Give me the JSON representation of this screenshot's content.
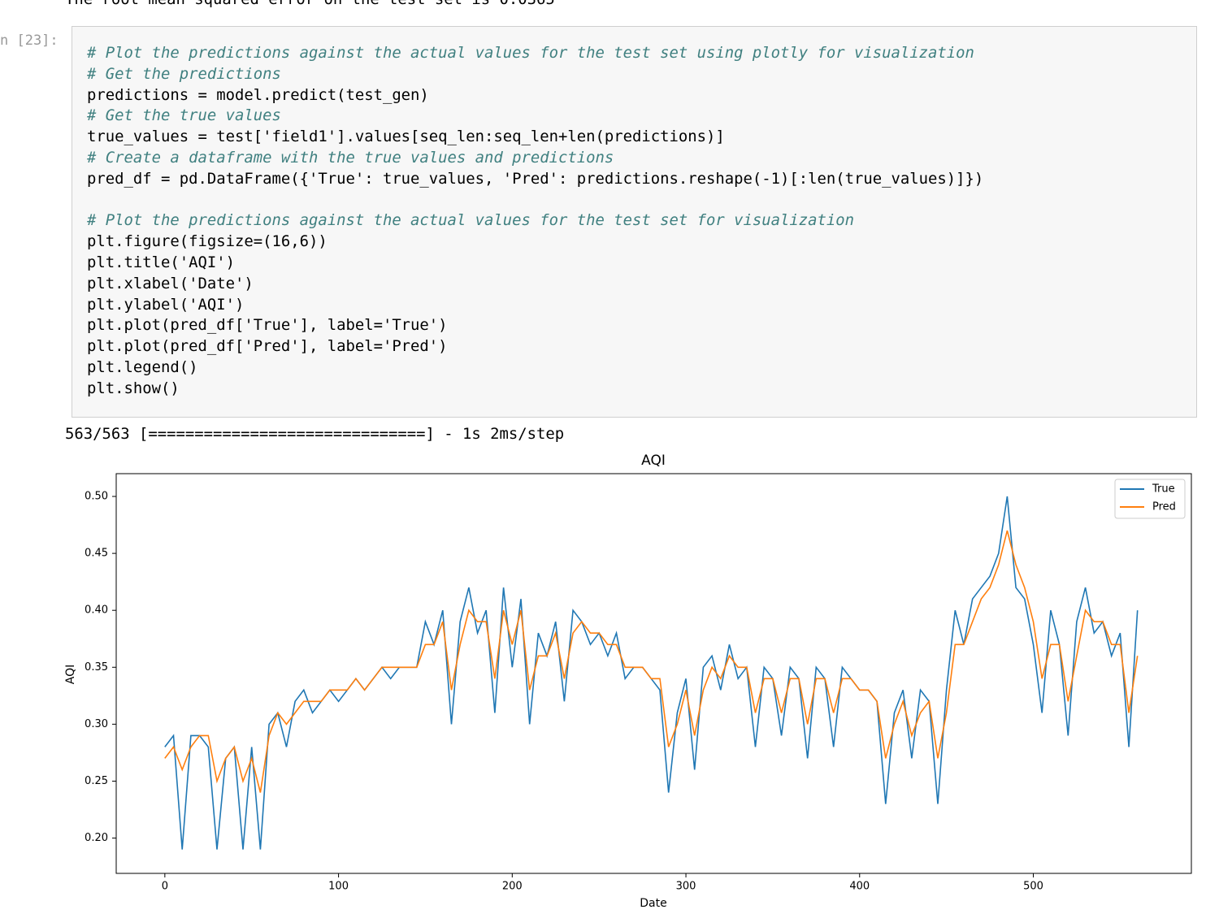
{
  "notebook": {
    "previous_output": "The root mean squared error on the test set is 0.0365",
    "prompt": "n [23]:",
    "code_blocks": [
      [
        "# Plot the predictions against the actual values for the test set using plotly for visualization",
        "# Get the predictions",
        "predictions = model.predict(test_gen)",
        "# Get the true values",
        "true_values = test['field1'].values[seq_len:seq_len+len(predictions)]",
        "# Create a dataframe with the true values and predictions",
        "pred_df = pd.DataFrame({'True': true_values, 'Pred': predictions.reshape(-1)[:len(true_values)]})"
      ],
      [
        "# Plot the predictions against the actual values for the test set for visualization",
        "plt.figure(figsize=(16,6))",
        "plt.title('AQI')",
        "plt.xlabel('Date')",
        "plt.ylabel('AQI')",
        "plt.plot(pred_df['True'], label='True')",
        "plt.plot(pred_df['Pred'], label='Pred')",
        "plt.legend()",
        "plt.show()"
      ]
    ],
    "stream_output": "563/563 [==============================] - 1s 2ms/step"
  },
  "chart_data": {
    "type": "line",
    "title": "AQI",
    "x_label": "Date",
    "y_label": "AQI",
    "legend": "upper right",
    "xlim": [
      -28,
      591
    ],
    "ylim": [
      0.169,
      0.52
    ],
    "xticks": [
      0,
      100,
      200,
      300,
      400,
      500
    ],
    "yticks": [
      {
        "value": 0.2,
        "label": "0.20"
      },
      {
        "value": 0.25,
        "label": "0.25"
      },
      {
        "value": 0.3,
        "label": "0.30"
      },
      {
        "value": 0.35,
        "label": "0.35"
      },
      {
        "value": 0.4,
        "label": "0.40"
      },
      {
        "value": 0.45,
        "label": "0.45"
      },
      {
        "value": 0.5,
        "label": "0.50"
      }
    ],
    "x": [
      0,
      5,
      10,
      15,
      20,
      25,
      30,
      35,
      40,
      45,
      50,
      55,
      60,
      65,
      70,
      75,
      80,
      85,
      90,
      95,
      100,
      105,
      110,
      115,
      120,
      125,
      130,
      135,
      140,
      145,
      150,
      155,
      160,
      165,
      170,
      175,
      180,
      185,
      190,
      195,
      200,
      205,
      210,
      215,
      220,
      225,
      230,
      235,
      240,
      245,
      250,
      255,
      260,
      265,
      270,
      275,
      280,
      285,
      290,
      295,
      300,
      305,
      310,
      315,
      320,
      325,
      330,
      335,
      340,
      345,
      350,
      355,
      360,
      365,
      370,
      375,
      380,
      385,
      390,
      395,
      400,
      405,
      410,
      415,
      420,
      425,
      430,
      435,
      440,
      445,
      450,
      455,
      460,
      465,
      470,
      475,
      480,
      485,
      490,
      495,
      500,
      505,
      510,
      515,
      520,
      525,
      530,
      535,
      540,
      545,
      550,
      555,
      560
    ],
    "series": [
      {
        "name": "True",
        "color": "#1f77b4",
        "values": [
          0.28,
          0.29,
          0.19,
          0.29,
          0.29,
          0.28,
          0.19,
          0.27,
          0.28,
          0.19,
          0.28,
          0.19,
          0.3,
          0.31,
          0.28,
          0.32,
          0.33,
          0.31,
          0.32,
          0.33,
          0.32,
          0.33,
          0.34,
          0.33,
          0.34,
          0.35,
          0.34,
          0.35,
          0.35,
          0.35,
          0.39,
          0.37,
          0.4,
          0.3,
          0.39,
          0.42,
          0.38,
          0.4,
          0.31,
          0.42,
          0.35,
          0.41,
          0.3,
          0.38,
          0.36,
          0.39,
          0.32,
          0.4,
          0.39,
          0.37,
          0.38,
          0.36,
          0.38,
          0.34,
          0.35,
          0.35,
          0.34,
          0.33,
          0.24,
          0.31,
          0.34,
          0.26,
          0.35,
          0.36,
          0.33,
          0.37,
          0.34,
          0.35,
          0.28,
          0.35,
          0.34,
          0.29,
          0.35,
          0.34,
          0.27,
          0.35,
          0.34,
          0.28,
          0.35,
          0.34,
          0.33,
          0.33,
          0.32,
          0.23,
          0.31,
          0.33,
          0.27,
          0.33,
          0.32,
          0.23,
          0.33,
          0.4,
          0.37,
          0.41,
          0.42,
          0.43,
          0.45,
          0.5,
          0.42,
          0.41,
          0.37,
          0.31,
          0.4,
          0.37,
          0.29,
          0.39,
          0.42,
          0.38,
          0.39,
          0.36,
          0.38,
          0.28,
          0.4
        ]
      },
      {
        "name": "Pred",
        "color": "#ff7f0e",
        "values": [
          0.27,
          0.28,
          0.26,
          0.28,
          0.29,
          0.29,
          0.25,
          0.27,
          0.28,
          0.25,
          0.27,
          0.24,
          0.29,
          0.31,
          0.3,
          0.31,
          0.32,
          0.32,
          0.32,
          0.33,
          0.33,
          0.33,
          0.34,
          0.33,
          0.34,
          0.35,
          0.35,
          0.35,
          0.35,
          0.35,
          0.37,
          0.37,
          0.39,
          0.33,
          0.37,
          0.4,
          0.39,
          0.39,
          0.34,
          0.4,
          0.37,
          0.4,
          0.33,
          0.36,
          0.36,
          0.38,
          0.34,
          0.38,
          0.39,
          0.38,
          0.38,
          0.37,
          0.37,
          0.35,
          0.35,
          0.35,
          0.34,
          0.34,
          0.28,
          0.3,
          0.33,
          0.29,
          0.33,
          0.35,
          0.34,
          0.36,
          0.35,
          0.35,
          0.31,
          0.34,
          0.34,
          0.31,
          0.34,
          0.34,
          0.3,
          0.34,
          0.34,
          0.31,
          0.34,
          0.34,
          0.33,
          0.33,
          0.32,
          0.27,
          0.3,
          0.32,
          0.29,
          0.31,
          0.32,
          0.27,
          0.31,
          0.37,
          0.37,
          0.39,
          0.41,
          0.42,
          0.44,
          0.47,
          0.44,
          0.42,
          0.39,
          0.34,
          0.37,
          0.37,
          0.32,
          0.36,
          0.4,
          0.39,
          0.39,
          0.37,
          0.37,
          0.31,
          0.36
        ]
      }
    ]
  }
}
